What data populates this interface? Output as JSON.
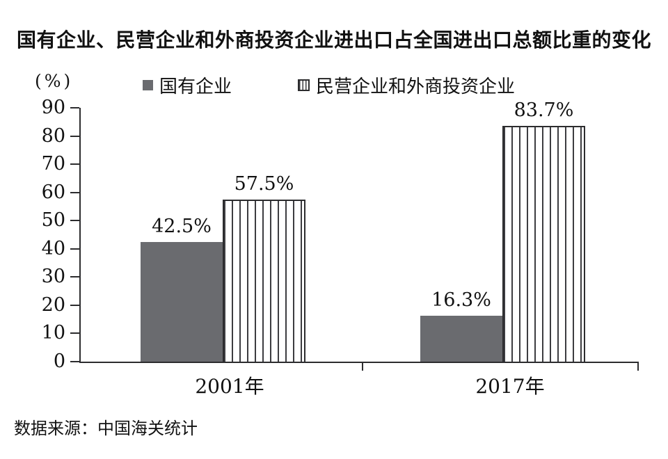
{
  "colors": {
    "bar_solid": "#6a6b6f",
    "bar_stripe_line": "#3c3c40",
    "axis_line": "#2c2c2e",
    "text": "#111111"
  },
  "chart_data": {
    "type": "bar",
    "title": "国有企业、民营企业和外商投资企业进出口占全国进出口总额比重的变化",
    "ylabel": "(%)",
    "categories": [
      "2001年",
      "2017年"
    ],
    "series": [
      {
        "name": "国有企业",
        "style": "solid",
        "values": [
          42.5,
          16.3
        ],
        "labels": [
          "42.5%",
          "16.3%"
        ]
      },
      {
        "name": "民营企业和外商投资企业",
        "style": "striped",
        "values": [
          57.5,
          83.7
        ],
        "labels": [
          "57.5%",
          "83.7%"
        ]
      }
    ],
    "ylim": [
      0,
      90
    ],
    "y_ticks": [
      0,
      10,
      20,
      30,
      40,
      50,
      60,
      70,
      80,
      90
    ],
    "grid": false,
    "legend_position": "top",
    "source": "数据来源：中国海关统计"
  }
}
